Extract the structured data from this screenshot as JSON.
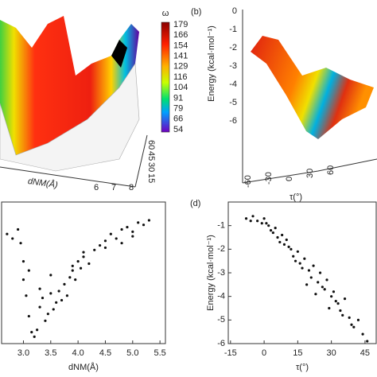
{
  "chart_data": [
    {
      "type": "surface",
      "colorbar_title": "ω",
      "colorbar_ticks": [
        179,
        166,
        154,
        141,
        129,
        116,
        104,
        91,
        79,
        66,
        54
      ],
      "xlabel": "dNM(Å)",
      "xticks": [
        6,
        7,
        8
      ],
      "yticks": [
        60,
        45,
        30,
        15
      ]
    },
    {
      "type": "surface",
      "panel_label": "(b)",
      "zlabel": "Energy (kcal·mol⁻¹)",
      "zticks": [
        0,
        -1,
        -2,
        -3,
        -4,
        -5,
        -6
      ],
      "xlabel": "τ(°)",
      "xticks": [
        -60,
        -30,
        0,
        30,
        60
      ]
    },
    {
      "type": "scatter",
      "xlabel": "dNM(Å)",
      "color": "#111111",
      "xlim": [
        2.6,
        5.6
      ],
      "ylim": [
        -6.2,
        0
      ],
      "xticks": [
        {
          "value": 3,
          "label": "3.0"
        },
        3.5,
        {
          "value": 4,
          "label": "4.0"
        },
        4.5,
        {
          "value": 5,
          "label": "5.0"
        },
        5.5
      ],
      "x": [
        2.7,
        2.8,
        2.9,
        2.95,
        3.0,
        3.05,
        3.1,
        3.15,
        3.2,
        3.25,
        3.3,
        3.35,
        3.4,
        3.45,
        3.5,
        3.55,
        3.6,
        3.65,
        3.7,
        3.75,
        3.8,
        3.85,
        3.9,
        3.95,
        4.0,
        4.05,
        4.1,
        4.2,
        4.3,
        4.4,
        4.5,
        4.6,
        4.7,
        4.8,
        4.9,
        5.0,
        5.1,
        5.2,
        5.3,
        3.3,
        3.5,
        3.9,
        4.1,
        4.5,
        4.8,
        5.0,
        3.0,
        3.1
      ],
      "values": [
        -1.4,
        -1.6,
        -1.2,
        -1.8,
        -3.4,
        -4.1,
        -5.0,
        -5.7,
        -5.9,
        -5.6,
        -4.6,
        -4.2,
        -5.2,
        -4.9,
        -4.0,
        -4.7,
        -4.4,
        -3.9,
        -4.3,
        -3.6,
        -4.1,
        -3.3,
        -3.0,
        -3.4,
        -2.6,
        -2.9,
        -2.4,
        -2.7,
        -2.1,
        -1.9,
        -1.7,
        -1.4,
        -1.6,
        -1.2,
        -1.1,
        -1.3,
        -0.9,
        -1.0,
        -0.8,
        -3.8,
        -3.2,
        -2.8,
        -2.2,
        -2.0,
        -1.8,
        -1.5,
        -2.6,
        -3.0
      ]
    },
    {
      "type": "scatter",
      "panel_label": "(d)",
      "ylabel": "Energy (kcal·mol⁻¹)",
      "xlabel": "τ(°)",
      "color": "#111111",
      "xlim": [
        -16,
        50
      ],
      "ylim": [
        -6,
        0
      ],
      "xticks": [
        -15,
        0,
        15,
        30,
        45
      ],
      "yticks": [
        -1,
        -2,
        -3,
        -4,
        -5,
        -6
      ],
      "x": [
        -8,
        -5,
        -3,
        -1,
        0,
        2,
        3,
        5,
        6,
        8,
        9,
        10,
        12,
        13,
        15,
        16,
        18,
        20,
        21,
        22,
        24,
        25,
        27,
        28,
        30,
        31,
        33,
        34,
        36,
        38,
        40,
        42,
        44,
        46,
        -6,
        1,
        4,
        7,
        11,
        14,
        17,
        19,
        23,
        26,
        29,
        32,
        35,
        39
      ],
      "values": [
        -0.7,
        -0.6,
        -0.8,
        -0.9,
        -0.7,
        -1.0,
        -1.2,
        -1.1,
        -1.5,
        -1.4,
        -1.8,
        -1.6,
        -2.0,
        -2.3,
        -2.1,
        -2.6,
        -2.4,
        -2.9,
        -3.2,
        -2.7,
        -3.4,
        -3.0,
        -3.7,
        -3.3,
        -4.0,
        -3.8,
        -4.3,
        -4.6,
        -4.1,
        -4.9,
        -5.3,
        -5.0,
        -5.6,
        -5.9,
        -0.8,
        -0.9,
        -1.3,
        -1.7,
        -1.9,
        -2.5,
        -2.8,
        -3.5,
        -3.9,
        -3.6,
        -4.5,
        -4.2,
        -4.8,
        -5.2
      ]
    }
  ]
}
